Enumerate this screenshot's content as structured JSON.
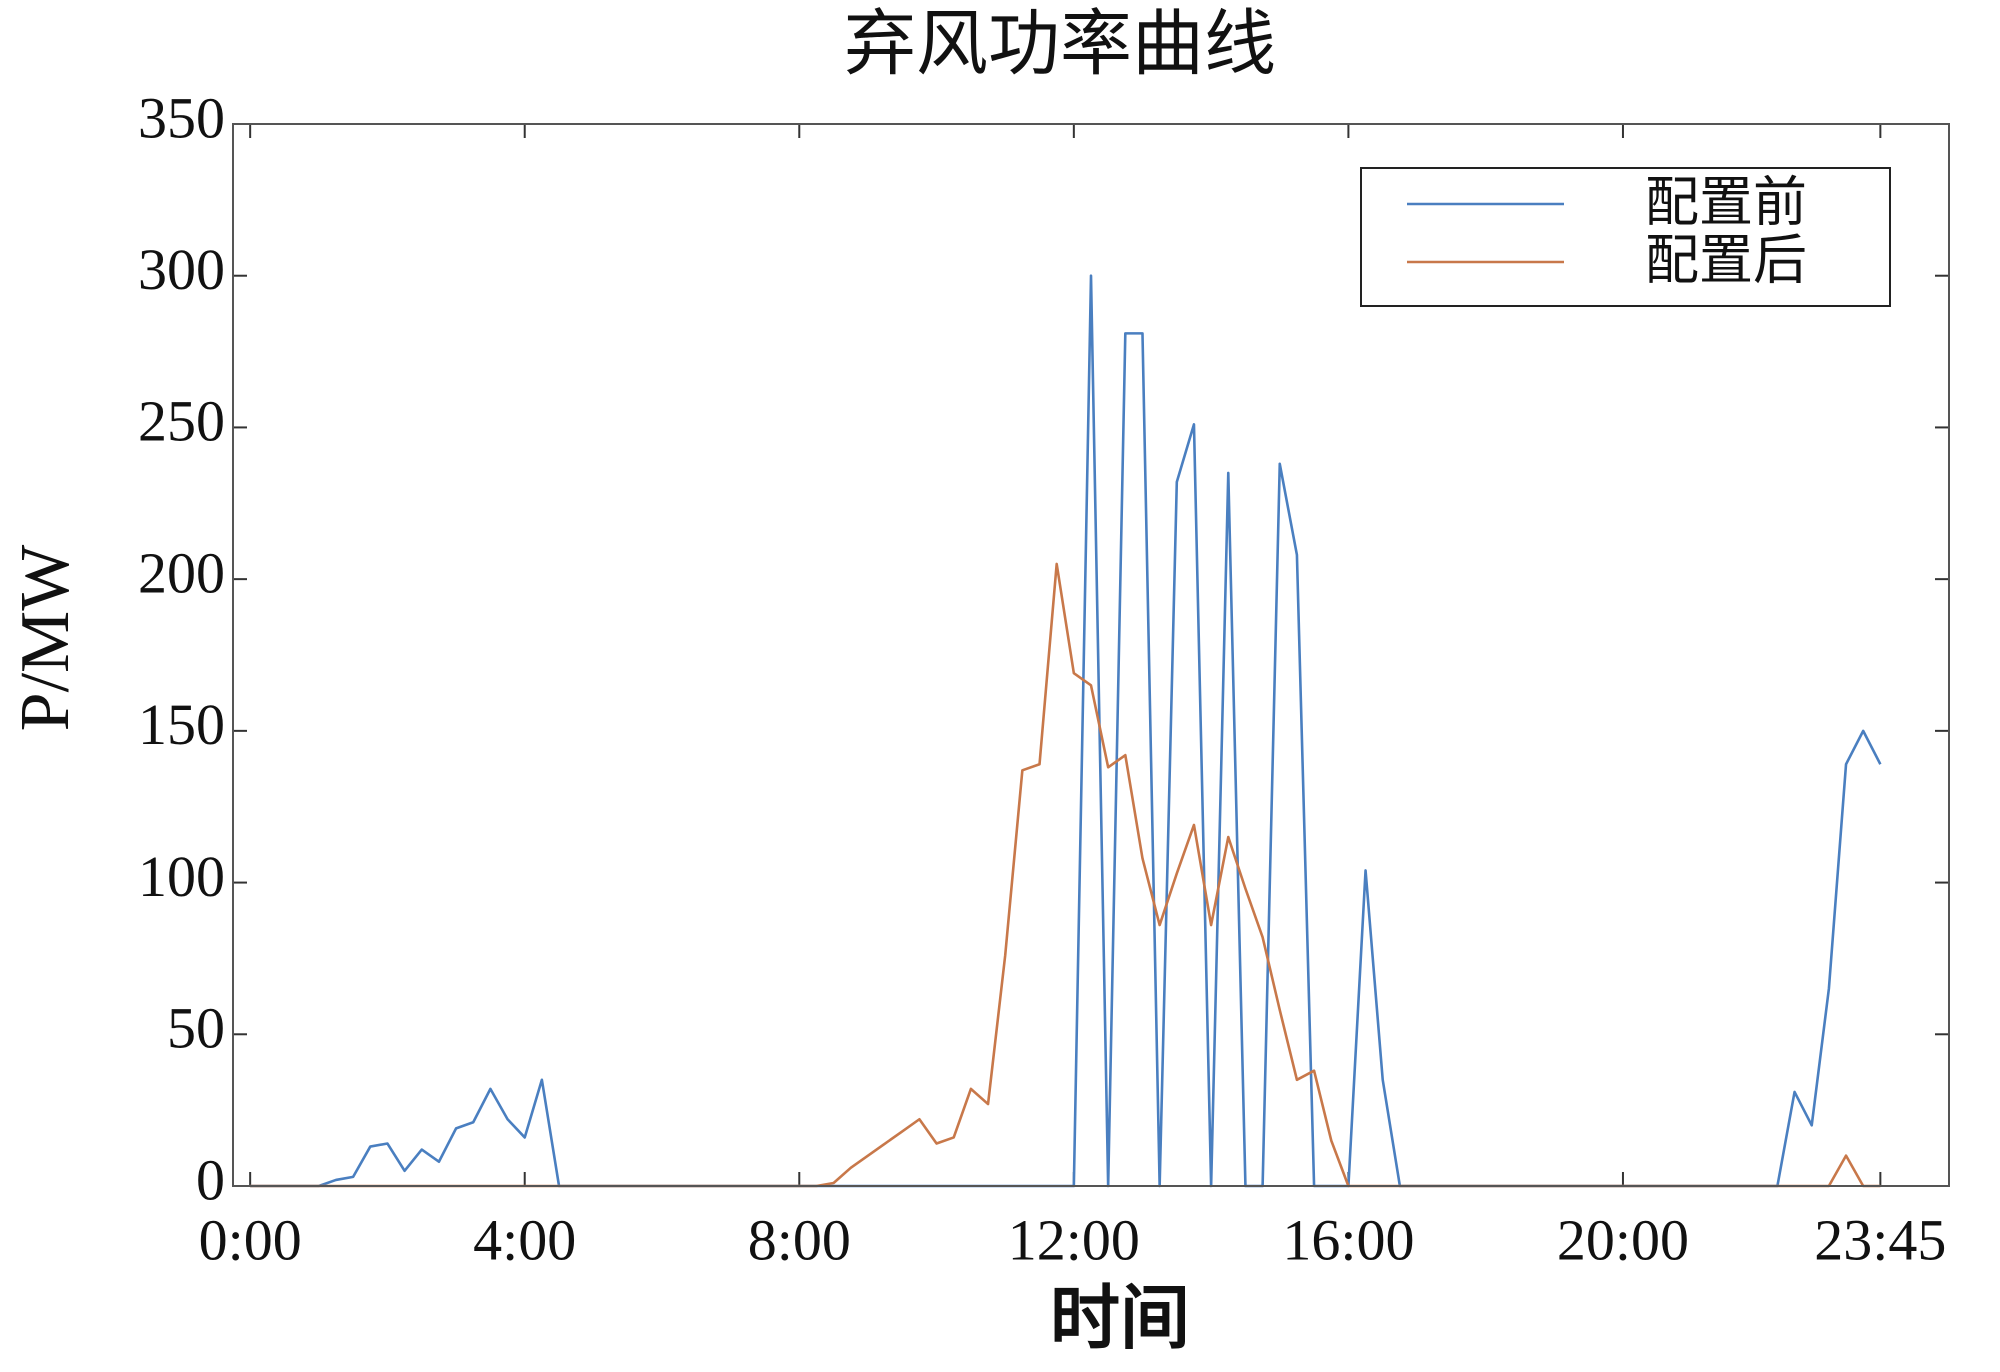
{
  "chart_data": {
    "type": "line",
    "title": "弃风功率曲线",
    "x_label": "时间",
    "y_label": "P/MW",
    "x": [
      0,
      0.25,
      0.5,
      0.75,
      1,
      1.25,
      1.5,
      1.75,
      2,
      2.25,
      2.5,
      2.75,
      3,
      3.25,
      3.5,
      3.75,
      4,
      4.25,
      4.5,
      4.75,
      5,
      5.25,
      5.5,
      5.75,
      6,
      6.25,
      6.5,
      6.75,
      7,
      7.25,
      7.5,
      7.75,
      8,
      8.25,
      8.5,
      8.75,
      9,
      9.25,
      9.5,
      9.75,
      10,
      10.25,
      10.5,
      10.75,
      11,
      11.25,
      11.5,
      11.75,
      12,
      12.25,
      12.5,
      12.75,
      13,
      13.25,
      13.5,
      13.75,
      14,
      14.25,
      14.5,
      14.75,
      15,
      15.25,
      15.5,
      15.75,
      16,
      16.25,
      16.5,
      16.75,
      17,
      17.25,
      17.5,
      17.75,
      18,
      18.25,
      18.5,
      18.75,
      19,
      19.25,
      19.5,
      19.75,
      20,
      20.25,
      20.5,
      20.75,
      21,
      21.25,
      21.5,
      21.75,
      22,
      22.25,
      22.5,
      22.75,
      23,
      23.25,
      23.5,
      23.75
    ],
    "series": [
      {
        "name": "配置前",
        "color": "#4a7fc0",
        "values": [
          0,
          0,
          0,
          0,
          0,
          2,
          3,
          13,
          14,
          5,
          12,
          8,
          19,
          21,
          32,
          22,
          16,
          35,
          0,
          0,
          0,
          0,
          0,
          0,
          0,
          0,
          0,
          0,
          0,
          0,
          0,
          0,
          0,
          0,
          0,
          0,
          0,
          0,
          0,
          0,
          0,
          0,
          0,
          0,
          0,
          0,
          0,
          0,
          0,
          300,
          0,
          281,
          281,
          0,
          232,
          251,
          0,
          235,
          0,
          0,
          238,
          208,
          0,
          0,
          0,
          104,
          35,
          0,
          0,
          0,
          0,
          0,
          0,
          0,
          0,
          0,
          0,
          0,
          0,
          0,
          0,
          0,
          0,
          0,
          0,
          0,
          0,
          0,
          0,
          0,
          31,
          20,
          65,
          139,
          150,
          139
        ]
      },
      {
        "name": "配置后",
        "color": "#c8784a",
        "values": [
          0,
          0,
          0,
          0,
          0,
          0,
          0,
          0,
          0,
          0,
          0,
          0,
          0,
          0,
          0,
          0,
          0,
          0,
          0,
          0,
          0,
          0,
          0,
          0,
          0,
          0,
          0,
          0,
          0,
          0,
          0,
          0,
          0,
          0,
          1,
          6,
          10,
          14,
          18,
          22,
          14,
          16,
          32,
          27,
          76,
          137,
          139,
          205,
          169,
          165,
          138,
          142,
          108,
          86,
          103,
          119,
          86,
          115,
          98,
          82,
          58,
          35,
          38,
          15,
          0,
          0,
          0,
          0,
          0,
          0,
          0,
          0,
          0,
          0,
          0,
          0,
          0,
          0,
          0,
          0,
          0,
          0,
          0,
          0,
          0,
          0,
          0,
          0,
          0,
          0,
          0,
          0,
          0,
          10,
          0,
          0
        ]
      }
    ],
    "xlim": [
      -0.25,
      24.75
    ],
    "xticks": [
      {
        "value": 0,
        "label": "0:00"
      },
      {
        "value": 4,
        "label": "4:00"
      },
      {
        "value": 8,
        "label": "8:00"
      },
      {
        "value": 12,
        "label": "12:00"
      },
      {
        "value": 16,
        "label": "16:00"
      },
      {
        "value": 20,
        "label": "20:00"
      },
      {
        "value": 23.75,
        "label": "23:45"
      }
    ],
    "ylim": [
      0,
      350
    ],
    "yticks": [
      0,
      50,
      100,
      150,
      200,
      250,
      300,
      350
    ],
    "grid": false,
    "legend": "upper right"
  }
}
